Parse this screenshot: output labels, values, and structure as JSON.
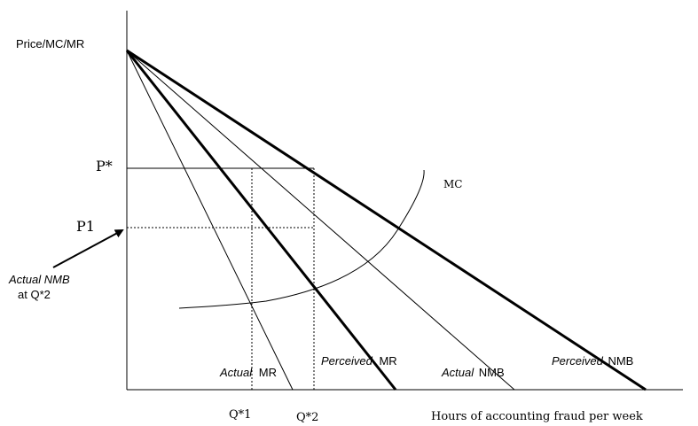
{
  "chart_data": {
    "type": "line",
    "title": "",
    "ylabel": "Price/MC/MR",
    "xlabel": "Hours of accounting fraud per week",
    "price_labels": [
      "P*",
      "P1"
    ],
    "quantity_labels": [
      "Q*1",
      "Q*2"
    ],
    "series": [
      {
        "name": "Actual MR",
        "label_italic": "Actual",
        "label_plain": "MR"
      },
      {
        "name": "Perceived MR",
        "label_italic": "Perceived",
        "label_plain": "MR"
      },
      {
        "name": "Actual NMB",
        "label_italic": "Actual",
        "label_plain": "NMB"
      },
      {
        "name": "Perceived NMB",
        "label_italic": "Perceived",
        "label_plain": "NMB"
      },
      {
        "name": "MC",
        "label_plain": "MC"
      }
    ],
    "annotation": {
      "line1": "Actual NMB",
      "line2": "at Q*2"
    },
    "colors": {
      "ink": "#000000",
      "background": "#ffffff"
    }
  }
}
